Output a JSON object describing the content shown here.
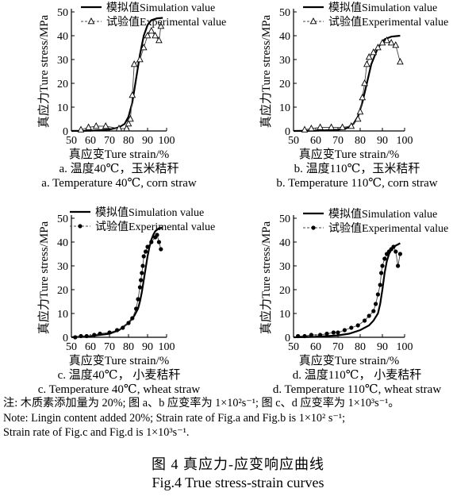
{
  "figure": {
    "note_cn": "注: 木质素添加量为 20%; 图 a、b 应变率为 1×10²s⁻¹; 图 c、d 应变率为 1×10³s⁻¹。",
    "note_en_1": "Note: Lingin content added 20%; Strain rate of Fig.a and Fig.b is 1×10² s⁻¹;",
    "note_en_2": "Strain rate of Fig.c and Fig.d is 1×10³s⁻¹.",
    "caption_cn": "图 4   真应力-应变响应曲线",
    "caption_en": "Fig.4    True stress-strain curves"
  },
  "chart_data": [
    {
      "type": "line",
      "xlabel": "真应变Ture strain/%",
      "ylabel": "真应力Ture stress/MPa",
      "xlim": [
        50,
        100
      ],
      "ylim": [
        0,
        50
      ],
      "xticks": [
        50,
        60,
        70,
        80,
        90,
        100
      ],
      "yticks": [
        0,
        10,
        20,
        30,
        40,
        50
      ],
      "caption_cn": "a. 温度40℃，玉米秸秆",
      "caption_en": "a. Temperature 40℃, corn straw",
      "legend": {
        "position": "top-right"
      },
      "series": [
        {
          "name": "模拟值Simulation value",
          "style": "solid-line",
          "x": [
            50,
            60,
            70,
            75,
            78,
            80,
            82,
            84,
            86,
            88,
            90,
            92,
            95,
            98
          ],
          "y": [
            0,
            0.1,
            0.6,
            1.5,
            3,
            6,
            12,
            22,
            32,
            40,
            44.5,
            46.5,
            47.3,
            47.5
          ]
        },
        {
          "name": "试验值Experimental value",
          "style": "triangle-markers",
          "x": [
            55,
            59,
            63,
            68,
            75,
            79,
            80,
            81,
            82,
            83,
            86,
            88,
            90,
            92,
            94,
            96,
            97
          ],
          "y": [
            0.5,
            1.5,
            2,
            2,
            1,
            1,
            3,
            5,
            15,
            28,
            30,
            35,
            40,
            42,
            40,
            38,
            44
          ]
        }
      ]
    },
    {
      "type": "line",
      "xlabel": "真应变Ture strain/%",
      "ylabel": "真应力Ture stress/MPa",
      "xlim": [
        50,
        100
      ],
      "ylim": [
        0,
        50
      ],
      "xticks": [
        50,
        60,
        70,
        80,
        90,
        100
      ],
      "yticks": [
        0,
        10,
        20,
        30,
        40,
        50
      ],
      "caption_cn": "b. 温度110℃，玉米秸秆",
      "caption_en": "b. Temperature 110℃, corn straw",
      "legend": {
        "position": "top-right"
      },
      "series": [
        {
          "name": "模拟值Simulation value",
          "style": "solid-line",
          "x": [
            50,
            60,
            70,
            74,
            77,
            79,
            81,
            83,
            85,
            88,
            91,
            94,
            98
          ],
          "y": [
            0,
            0.1,
            0.5,
            1.2,
            3,
            6,
            12,
            20,
            28,
            35,
            38.5,
            39.6,
            40
          ]
        },
        {
          "name": "试验值Experimental value",
          "style": "triangle-markers",
          "x": [
            55,
            58,
            62,
            67,
            72,
            76,
            79,
            80,
            81,
            82,
            83,
            84,
            86,
            88,
            90,
            92,
            94,
            96,
            98
          ],
          "y": [
            0.5,
            1,
            1.5,
            1.5,
            1.5,
            2,
            5,
            8,
            14,
            20,
            28,
            31,
            33,
            35,
            37,
            38,
            37,
            36,
            29
          ]
        }
      ]
    },
    {
      "type": "line",
      "xlabel": "真应变Ture strain/%",
      "ylabel": "真应力Ture stress/MPa",
      "xlim": [
        50,
        100
      ],
      "ylim": [
        0,
        50
      ],
      "xticks": [
        50,
        60,
        70,
        80,
        90,
        100
      ],
      "yticks": [
        0,
        10,
        20,
        30,
        40,
        50
      ],
      "caption_cn": "c. 温度40℃， 小麦秸秆",
      "caption_en": "c. Temperature 40℃, wheat straw",
      "legend": {
        "position": "top-left"
      },
      "series": [
        {
          "name": "模拟值Simulation value",
          "style": "solid-line",
          "x": [
            50,
            60,
            70,
            75,
            80,
            83,
            85,
            86,
            87,
            88,
            89,
            90,
            91,
            92,
            93,
            94,
            96,
            98
          ],
          "y": [
            0,
            0.5,
            1.5,
            3,
            6,
            9,
            12,
            15,
            19,
            24,
            29,
            34,
            38,
            41,
            43,
            44.5,
            45.8,
            46
          ]
        },
        {
          "name": "试验值Experimental value",
          "style": "dot-markers",
          "x": [
            52,
            55,
            58,
            62,
            65,
            70,
            74,
            77,
            80,
            82,
            84,
            85,
            86,
            86.5,
            87,
            87.5,
            88,
            89,
            90,
            92,
            94,
            95,
            96,
            97
          ],
          "y": [
            0,
            0.5,
            0.5,
            1,
            1.5,
            2,
            3,
            4,
            6,
            8,
            12,
            16,
            21,
            24,
            27,
            30,
            34,
            36,
            38,
            40,
            42,
            43,
            40,
            37
          ]
        }
      ]
    },
    {
      "type": "line",
      "xlabel": "真应变Ture strain/%",
      "ylabel": "真应力Ture stress/MPa",
      "xlim": [
        50,
        100
      ],
      "ylim": [
        0,
        50
      ],
      "xticks": [
        50,
        60,
        70,
        80,
        90,
        100
      ],
      "yticks": [
        0,
        10,
        20,
        30,
        40,
        50
      ],
      "caption_cn": "d. 温度110℃， 小麦秸秆",
      "caption_en": "d. Temperature 110℃, wheat straw",
      "legend": {
        "position": "top-right"
      },
      "series": [
        {
          "name": "模拟值Simulation value",
          "style": "solid-line",
          "x": [
            50,
            60,
            70,
            75,
            80,
            84,
            86,
            88,
            89,
            90,
            91,
            92,
            93,
            94,
            95,
            97,
            98
          ],
          "y": [
            0,
            0.2,
            0.8,
            1.5,
            3,
            5,
            7,
            10,
            14,
            20,
            27,
            32,
            35,
            37,
            38,
            39,
            39.5
          ]
        },
        {
          "name": "试验值Experimental value",
          "style": "dot-markers",
          "x": [
            52,
            55,
            58,
            62,
            65,
            68,
            70,
            73,
            76,
            79,
            82,
            84,
            86,
            87,
            88,
            89,
            89.5,
            90,
            91,
            92,
            93,
            94,
            95,
            96,
            97,
            98
          ],
          "y": [
            0.5,
            0.5,
            1,
            1,
            1.5,
            2,
            2,
            3,
            4,
            5,
            7,
            9,
            11,
            14,
            18,
            22,
            27,
            30,
            33,
            35,
            36,
            37,
            38,
            36,
            30,
            35
          ]
        }
      ]
    }
  ]
}
